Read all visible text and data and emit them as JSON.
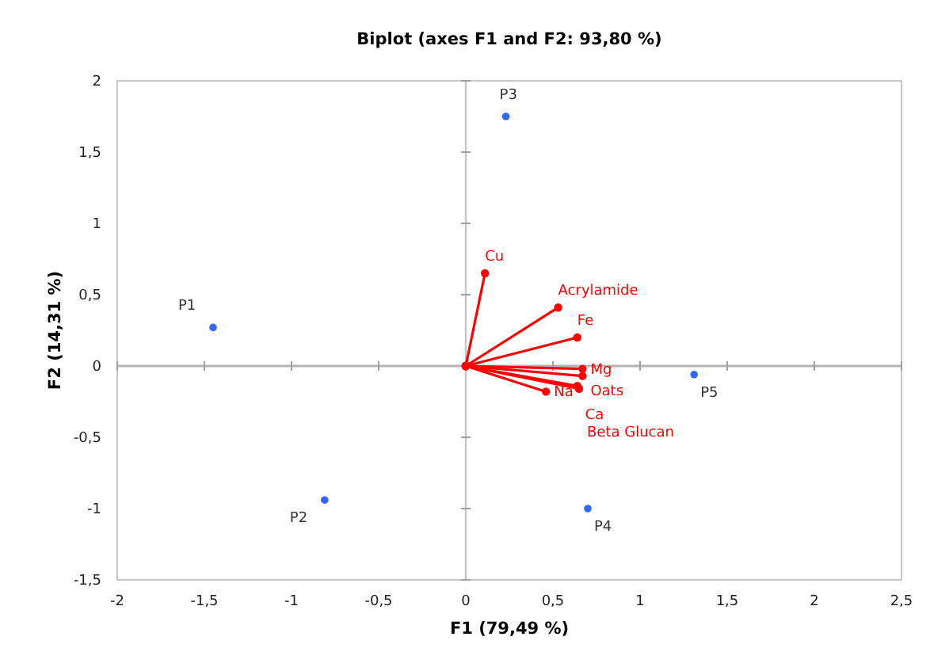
{
  "chart_data": {
    "type": "scatter",
    "title": "Biplot (axes F1 and F2: 93,80 %)",
    "xlabel": "F1 (79,49 %)",
    "ylabel": "F2 (14,31 %)",
    "xlim": [
      -2,
      2.5
    ],
    "xticks": [
      -2,
      {
        "value": -1.5,
        "label": "-1,5"
      },
      -1,
      {
        "value": -0.5,
        "label": "-0,5"
      },
      0,
      {
        "value": 0.5,
        "label": "0,5"
      },
      1,
      {
        "value": 1.5,
        "label": "1,5"
      },
      2,
      {
        "value": 2.5,
        "label": "2,5"
      }
    ],
    "ylim": [
      -1.5,
      2
    ],
    "yticks": [
      {
        "value": -1.5,
        "label": "-1,5"
      },
      -1,
      {
        "value": -0.5,
        "label": "-0,5"
      },
      0,
      {
        "value": 0.5,
        "label": "0,5"
      },
      1,
      {
        "value": 1.5,
        "label": "1,5"
      },
      2
    ],
    "grid": false,
    "marker": "circle",
    "ref_lines": [
      {
        "axis": "x",
        "value": 0,
        "color": "#c4c4c4"
      },
      {
        "axis": "y",
        "value": 0,
        "color": "#b4b4b4"
      }
    ],
    "series": [
      {
        "name": "P1",
        "color": "#3366ff",
        "x": [
          -1.45
        ],
        "values": [
          0.27
        ]
      },
      {
        "name": "P2",
        "color": "#3366ff",
        "x": [
          -0.81
        ],
        "values": [
          -0.94
        ]
      },
      {
        "name": "P3",
        "color": "#3366ff",
        "x": [
          0.23
        ],
        "values": [
          1.75
        ]
      },
      {
        "name": "P4",
        "color": "#3366ff",
        "x": [
          0.7
        ],
        "values": [
          -1.0
        ]
      },
      {
        "name": "P5",
        "color": "#3366ff",
        "x": [
          1.31
        ],
        "values": [
          -0.06
        ]
      },
      {
        "name": "Cu",
        "type": "line",
        "color": "#ff0000",
        "x": [
          0,
          0.11
        ],
        "values": [
          0,
          0.65
        ]
      },
      {
        "name": "Acrylamide",
        "type": "line",
        "color": "#ff0000",
        "x": [
          0,
          0.53
        ],
        "values": [
          0,
          0.41
        ]
      },
      {
        "name": "Fe",
        "type": "line",
        "color": "#ff0000",
        "x": [
          0,
          0.64
        ],
        "values": [
          0,
          0.2
        ]
      },
      {
        "name": "Mg",
        "type": "line",
        "color": "#ff0000",
        "x": [
          0,
          0.67
        ],
        "values": [
          0,
          -0.02
        ]
      },
      {
        "name": "Oats",
        "type": "line",
        "color": "#ff0000",
        "x": [
          0,
          0.67
        ],
        "values": [
          0,
          -0.07
        ]
      },
      {
        "name": "Ca",
        "type": "line",
        "color": "#ff0000",
        "x": [
          0,
          0.64
        ],
        "values": [
          0,
          -0.14
        ]
      },
      {
        "name": "Beta Glucan",
        "type": "line",
        "color": "#ff0000",
        "x": [
          0,
          0.65
        ],
        "values": [
          0,
          -0.16
        ]
      },
      {
        "name": "Na",
        "type": "line",
        "color": "#ff0000",
        "x": [
          0,
          0.46
        ],
        "values": [
          0,
          -0.18
        ]
      }
    ]
  }
}
